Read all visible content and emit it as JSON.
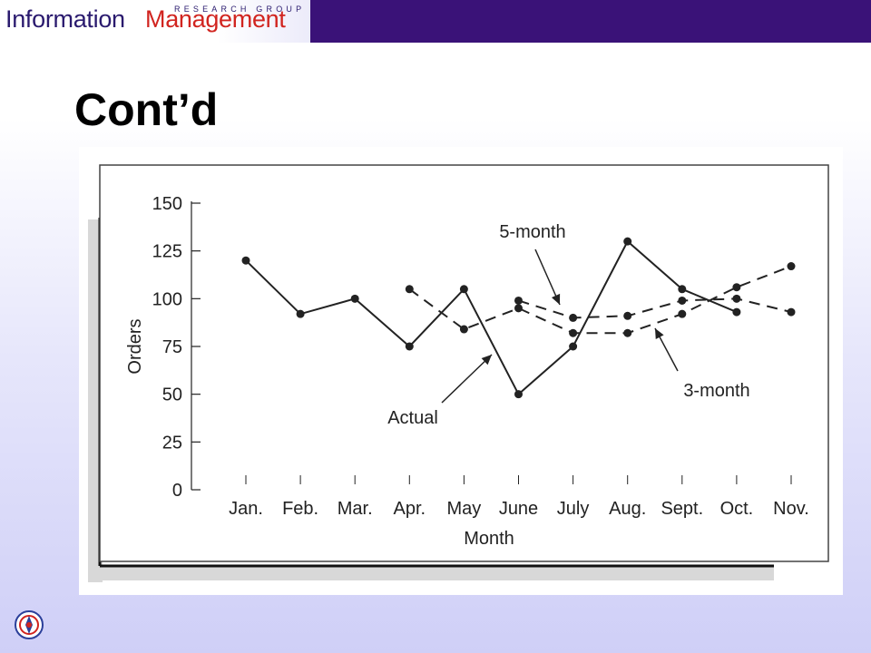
{
  "header": {
    "brand_primary": "Information",
    "brand_secondary": "Management",
    "brand_tagline": "RESEARCH GROUP"
  },
  "slide": {
    "title": "Cont’d"
  },
  "chart_data": {
    "type": "line",
    "title": "",
    "xlabel": "Month",
    "ylabel": "Orders",
    "categories": [
      "Jan.",
      "Feb.",
      "Mar.",
      "Apr.",
      "May",
      "June",
      "July",
      "Aug.",
      "Sept.",
      "Oct.",
      "Nov."
    ],
    "yticks": [
      0,
      25,
      50,
      75,
      100,
      125,
      150
    ],
    "ylim": [
      0,
      150
    ],
    "grid": false,
    "series": [
      {
        "name": "Actual",
        "style": "solid",
        "values": [
          120,
          92,
          100,
          75,
          105,
          50,
          75,
          130,
          105,
          93,
          null
        ]
      },
      {
        "name": "5-month",
        "style": "dashed",
        "values": [
          null,
          null,
          null,
          null,
          null,
          99,
          90,
          91,
          99,
          100,
          93
        ]
      },
      {
        "name": "3-month",
        "style": "dashed",
        "values": [
          null,
          null,
          null,
          105,
          84,
          95,
          82,
          82,
          92,
          106,
          117
        ]
      }
    ],
    "annotations": [
      {
        "label": "5-month",
        "series": "5-month",
        "category": "July"
      },
      {
        "label": "Actual",
        "series": "Actual",
        "category": "May"
      },
      {
        "label": "3-month",
        "series": "3-month",
        "category": "Sept."
      }
    ]
  },
  "colors": {
    "header_bar": "#3a1278",
    "brand_text": "#2a1a6e",
    "brand_accent": "#d1241f",
    "ink": "#222222"
  },
  "icons": {
    "footer_logo": "university-crest-icon"
  }
}
